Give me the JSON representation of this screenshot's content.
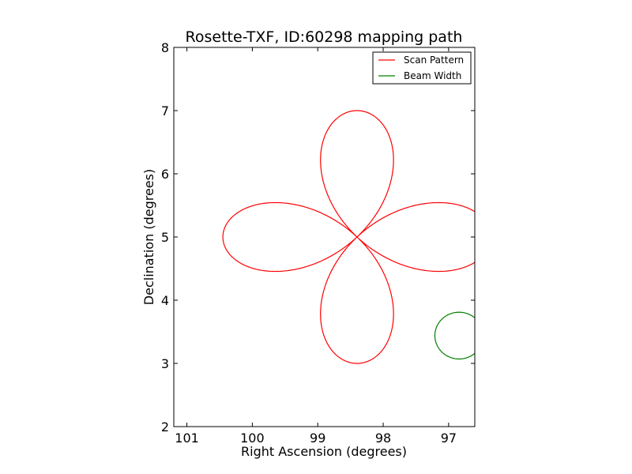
{
  "chart_data": {
    "type": "line",
    "title": "Rosette-TXF, ID:60298 mapping path",
    "xlabel": "Right Ascension (degrees)",
    "ylabel": "Declination (degrees)",
    "xlim": [
      101.2,
      96.6
    ],
    "ylim": [
      2,
      8
    ],
    "x_inverted": true,
    "xticks": [
      101,
      100,
      99,
      98,
      97
    ],
    "yticks": [
      2,
      3,
      4,
      5,
      6,
      7,
      8
    ],
    "grid": false,
    "legend_position": "top-right",
    "series": [
      {
        "name": "Scan Pattern",
        "color": "#ff0000",
        "shape": "rosette",
        "center": [
          98.4,
          5.0
        ],
        "petals": 4,
        "radius_x_deg": 2.05,
        "radius_y_deg": 2.0,
        "petal_angles_deg": [
          0,
          90,
          180,
          270
        ]
      },
      {
        "name": "Beam Width",
        "color": "#008000",
        "shape": "circle",
        "center": [
          96.84,
          3.44
        ],
        "radius_x_deg": 0.37,
        "radius_y_deg": 0.37
      }
    ]
  }
}
